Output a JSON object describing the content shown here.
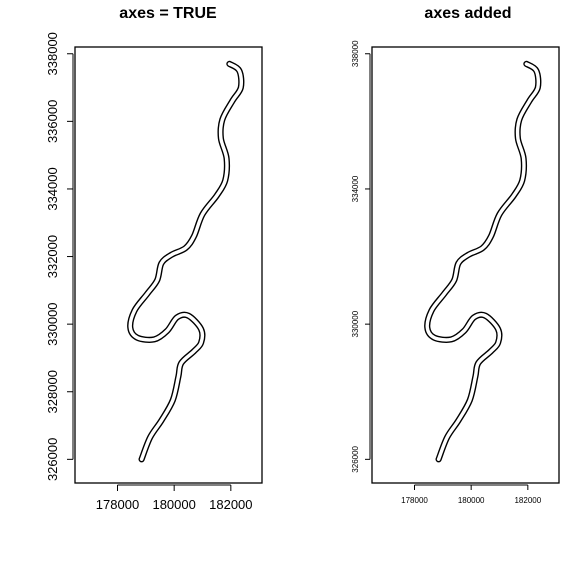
{
  "chart_data": [
    {
      "type": "map",
      "title": "axes = TRUE",
      "feature": "river",
      "xlim": [
        176500,
        183100
      ],
      "ylim": [
        325300,
        338200
      ],
      "x_ticks": [
        178000,
        180000,
        182000
      ],
      "y_ticks": [
        326000,
        328000,
        330000,
        332000,
        334000,
        336000,
        338000
      ],
      "x_tick_labels": [
        "178000",
        "180000",
        "182000"
      ],
      "y_tick_labels": [
        "326000",
        "328000",
        "330000",
        "332000",
        "334000",
        "336000",
        "338000"
      ],
      "line": [
        [
          178850,
          326000
        ],
        [
          179150,
          326650
        ],
        [
          179550,
          327150
        ],
        [
          179950,
          327750
        ],
        [
          180150,
          328450
        ],
        [
          180250,
          328850
        ],
        [
          180700,
          329200
        ],
        [
          180950,
          329450
        ],
        [
          180950,
          329850
        ],
        [
          180500,
          330250
        ],
        [
          180100,
          330200
        ],
        [
          179750,
          329800
        ],
        [
          179300,
          329550
        ],
        [
          178700,
          329600
        ],
        [
          178450,
          329900
        ],
        [
          178600,
          330400
        ],
        [
          179050,
          330900
        ],
        [
          179400,
          331300
        ],
        [
          179550,
          331800
        ],
        [
          179900,
          332050
        ],
        [
          180400,
          332250
        ],
        [
          180700,
          332600
        ],
        [
          181000,
          333250
        ],
        [
          181500,
          333800
        ],
        [
          181800,
          334250
        ],
        [
          181850,
          334900
        ],
        [
          181650,
          335500
        ],
        [
          181700,
          336050
        ],
        [
          182050,
          336600
        ],
        [
          182350,
          337000
        ],
        [
          182300,
          337500
        ],
        [
          181950,
          337700
        ]
      ]
    },
    {
      "type": "map",
      "title": "axes added",
      "feature": "river",
      "xlim": [
        176500,
        183100
      ],
      "ylim": [
        325300,
        338200
      ],
      "x_ticks": [
        178000,
        180000,
        182000
      ],
      "y_ticks": [
        326000,
        330000,
        334000,
        338000
      ],
      "x_tick_labels": [
        "178000",
        "180000",
        "182000"
      ],
      "y_tick_labels": [
        "326000",
        "330000",
        "334000",
        "338000"
      ],
      "line": [
        [
          178850,
          326000
        ],
        [
          179150,
          326650
        ],
        [
          179550,
          327150
        ],
        [
          179950,
          327750
        ],
        [
          180150,
          328450
        ],
        [
          180250,
          328850
        ],
        [
          180700,
          329200
        ],
        [
          180950,
          329450
        ],
        [
          180950,
          329850
        ],
        [
          180500,
          330250
        ],
        [
          180100,
          330200
        ],
        [
          179750,
          329800
        ],
        [
          179300,
          329550
        ],
        [
          178700,
          329600
        ],
        [
          178450,
          329900
        ],
        [
          178600,
          330400
        ],
        [
          179050,
          330900
        ],
        [
          179400,
          331300
        ],
        [
          179550,
          331800
        ],
        [
          179900,
          332050
        ],
        [
          180400,
          332250
        ],
        [
          180700,
          332600
        ],
        [
          181000,
          333250
        ],
        [
          181500,
          333800
        ],
        [
          181800,
          334250
        ],
        [
          181850,
          334900
        ],
        [
          181650,
          335500
        ],
        [
          181700,
          336050
        ],
        [
          182050,
          336600
        ],
        [
          182350,
          337000
        ],
        [
          182300,
          337500
        ],
        [
          181950,
          337700
        ]
      ]
    }
  ]
}
